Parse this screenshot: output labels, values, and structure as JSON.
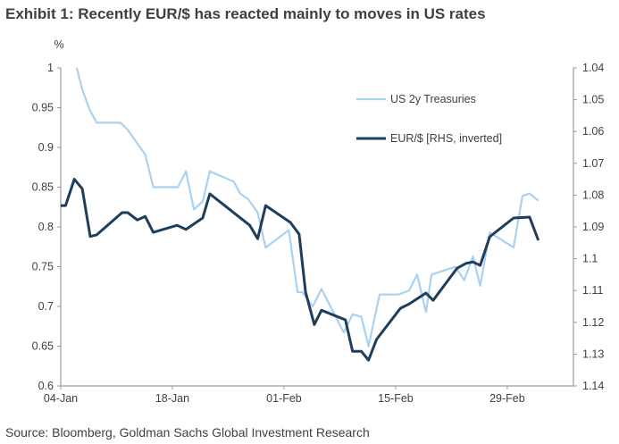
{
  "chart_data": {
    "type": "line",
    "title": "Exhibit 1: Recently EUR/$ has reacted mainly to moves in US rates",
    "source": "Source: Bloomberg, Goldman Sachs Global Investment Research",
    "ylabel": "%",
    "x_unit": "days since 04-Jan",
    "xlim": [
      0,
      64.3
    ],
    "x_ticks": [
      {
        "day": 0,
        "label": "04-Jan"
      },
      {
        "day": 14,
        "label": "18-Jan"
      },
      {
        "day": 28,
        "label": "01-Feb"
      },
      {
        "day": 42,
        "label": "15-Feb"
      },
      {
        "day": 56,
        "label": "29-Feb"
      }
    ],
    "ylim_left": [
      0.6,
      1.0
    ],
    "y_ticks_left": [
      "1",
      "0.95",
      "0.9",
      "0.85",
      "0.8",
      "0.75",
      "0.7",
      "0.65",
      "0.6"
    ],
    "ylim_right": [
      1.04,
      1.14
    ],
    "right_inverted": true,
    "y_ticks_right": [
      "1.04",
      "1.05",
      "1.06",
      "1.07",
      "1.08",
      "1.09",
      "1.1",
      "1.11",
      "1.12",
      "1.13",
      "1.14"
    ],
    "legend_position": "top-right",
    "series": [
      {
        "name": "US 2y Treasuries",
        "axis": "left",
        "color": "#a9d2f0",
        "x": [
          2,
          2.7,
          3.6,
          4.5,
          7.5,
          8.4,
          10.6,
          11.6,
          14.7,
          15.7,
          16.7,
          17.8,
          18.7,
          21.7,
          22.5,
          23.5,
          24.7,
          25.7,
          28.6,
          29.7,
          30.3,
          31.6,
          32.7,
          35.5,
          36.6,
          37.7,
          38.6,
          40,
          42.4,
          43.7,
          44.7,
          45.8,
          46.5,
          49.5,
          50.6,
          51.7,
          52.6,
          53.8,
          56.8,
          57.9,
          58.8,
          59.9
        ],
        "y": [
          1.0,
          0.973,
          0.948,
          0.931,
          0.931,
          0.922,
          0.891,
          0.85,
          0.85,
          0.87,
          0.822,
          0.832,
          0.87,
          0.857,
          0.842,
          0.835,
          0.818,
          0.774,
          0.796,
          0.718,
          0.718,
          0.7,
          0.722,
          0.667,
          0.69,
          0.687,
          0.65,
          0.715,
          0.715,
          0.72,
          0.74,
          0.693,
          0.74,
          0.75,
          0.733,
          0.763,
          0.726,
          0.793,
          0.774,
          0.839,
          0.842,
          0.833
        ]
      },
      {
        "name": "EUR/$ [RHS, inverted]",
        "axis": "right",
        "color": "#1f3d5c",
        "x": [
          0,
          0.6,
          1.7,
          2.7,
          3.7,
          4.5,
          7.7,
          8.4,
          9.6,
          10.6,
          11.6,
          14.6,
          15.7,
          17.8,
          18.7,
          23.7,
          24.7,
          25.7,
          28.8,
          29.9,
          30.7,
          31.8,
          32.7,
          35.7,
          36.6,
          37.7,
          38.6,
          39.6,
          42.6,
          43.7,
          45.8,
          46.7,
          49.7,
          50.8,
          51.7,
          52.6,
          53.8,
          56.8,
          58.8,
          59.9
        ],
        "y": [
          1.0833,
          1.0833,
          1.075,
          1.078,
          1.093,
          1.0925,
          1.0855,
          1.0855,
          1.0878,
          1.0867,
          1.0917,
          1.0895,
          1.0908,
          1.0872,
          1.0796,
          1.0895,
          1.0937,
          1.0833,
          1.0886,
          1.0923,
          1.1105,
          1.1207,
          1.1162,
          1.1192,
          1.1291,
          1.1291,
          1.1319,
          1.1254,
          1.1156,
          1.1142,
          1.1108,
          1.1131,
          1.103,
          1.1015,
          1.101,
          1.1021,
          1.0931,
          1.0872,
          1.0869,
          1.0942
        ]
      }
    ]
  }
}
